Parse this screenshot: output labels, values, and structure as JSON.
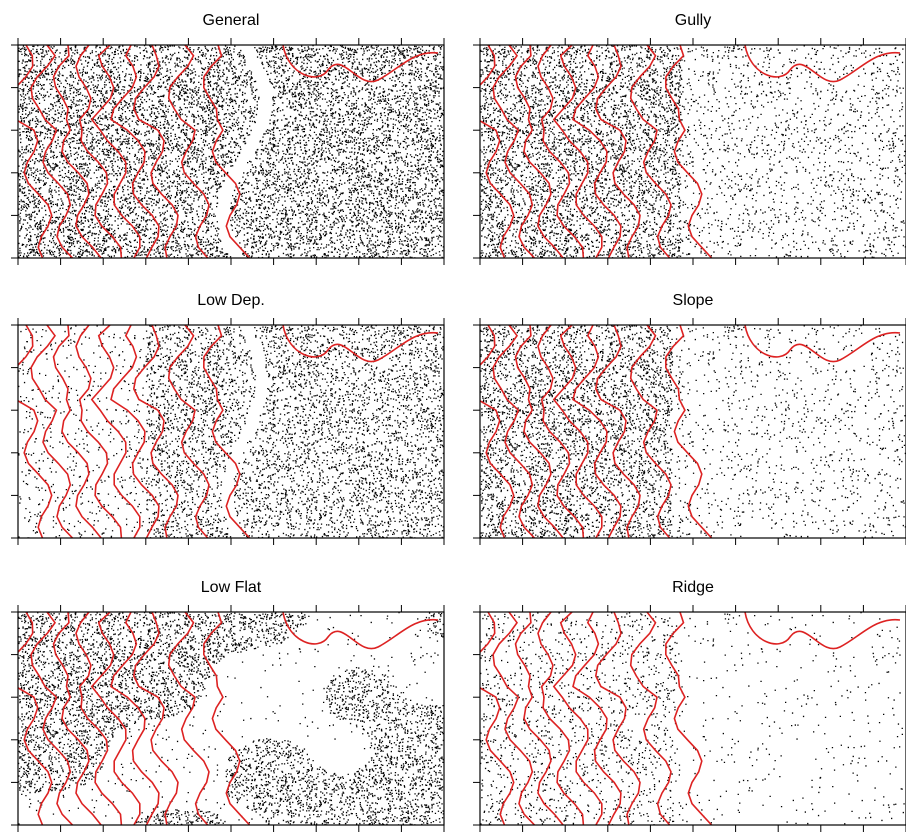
{
  "panels": [
    {
      "title": "General"
    },
    {
      "title": "Gully"
    },
    {
      "title": "Low Dep."
    },
    {
      "title": "Slope"
    },
    {
      "title": "Low Flat"
    },
    {
      "title": "Ridge"
    }
  ]
}
